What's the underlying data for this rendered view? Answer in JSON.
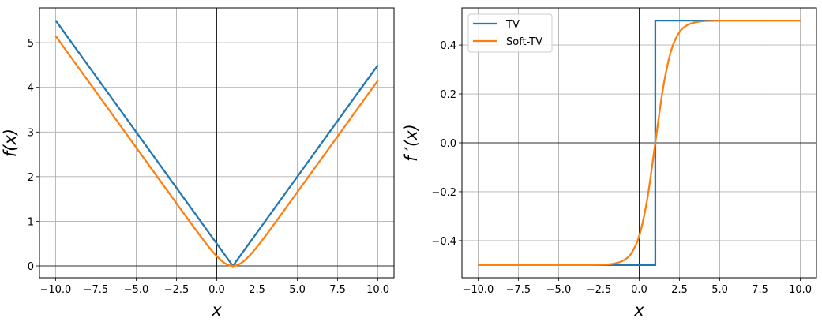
{
  "chart_data": [
    {
      "type": "line",
      "xlabel": "x",
      "ylabel": "f(x)",
      "xlim": [
        -11,
        11
      ],
      "ylim": [
        -0.265,
        5.78
      ],
      "xticks": [
        -10,
        -7.5,
        -5,
        -2.5,
        0,
        2.5,
        5,
        7.5,
        10
      ],
      "xtick_labels": [
        "−10.0",
        "−7.5",
        "−5.0",
        "−2.5",
        "0.0",
        "2.5",
        "5.0",
        "7.5",
        "10.0"
      ],
      "yticks": [
        0,
        1,
        2,
        3,
        4,
        5
      ],
      "ytick_labels": [
        "0",
        "1",
        "2",
        "3",
        "4",
        "5"
      ],
      "grid": true,
      "zero_lines": true,
      "legend": null,
      "series": [
        {
          "color": "#1f77b4",
          "smooth": false,
          "x": [
            -10,
            1,
            10
          ],
          "y": [
            5.5,
            0,
            4.5
          ]
        },
        {
          "color": "#ff7f0e",
          "smooth": true,
          "x": [
            -10,
            -9.5,
            -9,
            -8.5,
            -8,
            -7.5,
            -7,
            -6.5,
            -6,
            -5.5,
            -5,
            -4.5,
            -4,
            -3.5,
            -3,
            -2.5,
            -2,
            -1.5,
            -1,
            -0.5,
            0,
            0.5,
            1,
            1.5,
            2,
            2.5,
            3,
            3.5,
            4,
            4.5,
            5,
            5.5,
            6,
            6.5,
            7,
            7.5,
            8,
            8.5,
            9,
            9.5,
            10
          ],
          "y": [
            5.153,
            4.903,
            4.653,
            4.403,
            4.153,
            3.903,
            3.653,
            3.403,
            3.153,
            2.903,
            2.653,
            2.403,
            2.153,
            1.903,
            1.654,
            1.404,
            1.155,
            0.907,
            0.663,
            0.428,
            0.217,
            0.06,
            0,
            0.06,
            0.217,
            0.428,
            0.663,
            0.907,
            1.155,
            1.404,
            1.654,
            1.903,
            2.153,
            2.403,
            2.653,
            2.903,
            3.153,
            3.403,
            3.653,
            3.903,
            4.153
          ]
        }
      ]
    },
    {
      "type": "line",
      "xlabel": "x",
      "ylabel": "f ′(x)",
      "xlim": [
        -11,
        11
      ],
      "ylim": [
        -0.552,
        0.552
      ],
      "xticks": [
        -10,
        -7.5,
        -5,
        -2.5,
        0,
        2.5,
        5,
        7.5,
        10
      ],
      "xtick_labels": [
        "−10.0",
        "−7.5",
        "−5.0",
        "−2.5",
        "0.0",
        "2.5",
        "5.0",
        "7.5",
        "10.0"
      ],
      "yticks": [
        -0.4,
        -0.2,
        0,
        0.2,
        0.4
      ],
      "ytick_labels": [
        "−0.4",
        "−0.2",
        "0.0",
        "0.2",
        "0.4"
      ],
      "grid": true,
      "zero_lines": true,
      "legend": "top-left",
      "series": [
        {
          "name": "TV",
          "color": "#1f77b4",
          "smooth": false,
          "x": [
            -10,
            1,
            1,
            10
          ],
          "y": [
            -0.5,
            -0.5,
            0.5,
            0.5
          ]
        },
        {
          "name": "Soft-TV",
          "color": "#ff7f0e",
          "smooth": true,
          "x": [
            -10,
            -9.5,
            -9,
            -8.5,
            -8,
            -7.5,
            -7,
            -6.5,
            -6,
            -5.5,
            -5,
            -4.5,
            -4,
            -3.5,
            -3,
            -2.5,
            -2,
            -1.5,
            -1,
            -0.5,
            0,
            0.5,
            1,
            1.5,
            2,
            2.5,
            3,
            3.5,
            4,
            4.5,
            5,
            5.5,
            6,
            6.5,
            7,
            7.5,
            8,
            8.5,
            9,
            9.5,
            10
          ],
          "y": [
            -0.5,
            -0.5,
            -0.5,
            -0.5,
            -0.5,
            -0.5,
            -0.5,
            -0.5,
            -0.5,
            -0.5,
            -0.5,
            -0.5,
            -0.5,
            -0.5,
            -0.5,
            -0.499,
            -0.498,
            -0.493,
            -0.482,
            -0.453,
            -0.381,
            -0.231,
            0,
            0.231,
            0.381,
            0.453,
            0.482,
            0.493,
            0.498,
            0.499,
            0.5,
            0.5,
            0.5,
            0.5,
            0.5,
            0.5,
            0.5,
            0.5,
            0.5,
            0.5,
            0.5
          ]
        }
      ]
    }
  ]
}
